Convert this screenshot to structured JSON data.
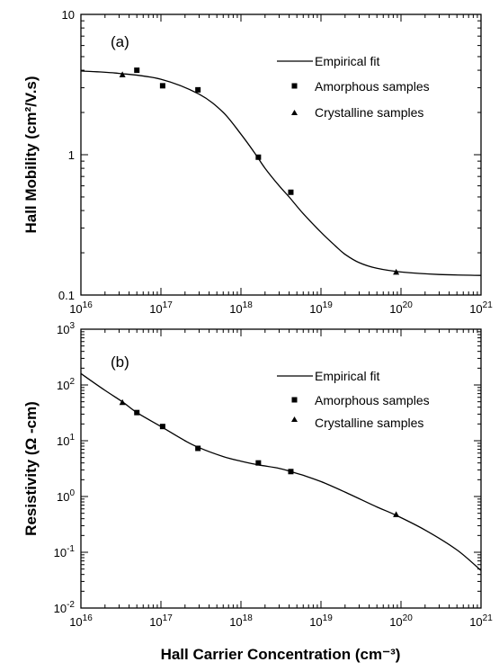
{
  "chart_data": [
    {
      "type": "line",
      "panel_label": "(a)",
      "xlabel": "",
      "ylabel": "Hall Mobility  (cm²/V.s)",
      "x_scale": "log",
      "y_scale": "log",
      "xlim": [
        1e+16,
        1e+21
      ],
      "ylim": [
        0.1,
        10
      ],
      "x_ticks": [
        {
          "value": 1e+16,
          "base": "10",
          "exp": "16"
        },
        {
          "value": 1e+17,
          "base": "10",
          "exp": "17"
        },
        {
          "value": 1e+18,
          "base": "10",
          "exp": "18"
        },
        {
          "value": 1e+19,
          "base": "10",
          "exp": "19"
        },
        {
          "value": 1e+20,
          "base": "10",
          "exp": "20"
        },
        {
          "value": 1e+21,
          "base": "10",
          "exp": "21"
        }
      ],
      "y_ticks": [
        {
          "value": 0.1,
          "label": "0.1"
        },
        {
          "value": 1,
          "label": "1"
        },
        {
          "value": 10,
          "label": "10"
        }
      ],
      "legend": {
        "placement": "top-right",
        "entries": [
          "Empirical  fit",
          "Amorphous samples",
          "Crystalline samples"
        ]
      },
      "series": [
        {
          "name": "Empirical  fit",
          "kind": "line",
          "x": [
            1e+16,
            3e+16,
            1e+17,
            3e+17,
            6e+17,
            1e+18,
            1.5e+18,
            2e+18,
            3e+18,
            4e+18,
            6e+18,
            1e+19,
            1.5e+19,
            2e+19,
            3e+19,
            5e+19,
            1e+20,
            3e+20,
            1e+21
          ],
          "y": [
            3.95,
            3.8,
            3.45,
            2.7,
            2.0,
            1.4,
            1.02,
            0.8,
            0.6,
            0.5,
            0.38,
            0.28,
            0.225,
            0.195,
            0.17,
            0.155,
            0.146,
            0.14,
            0.138
          ]
        },
        {
          "name": "Amorphous samples",
          "kind": "square",
          "x": [
            5e+16,
            1.05e+17,
            2.9e+17,
            1.65e+18,
            4.2e+18
          ],
          "y": [
            4.0,
            3.1,
            2.9,
            0.96,
            0.54
          ]
        },
        {
          "name": "Crystalline samples",
          "kind": "triangle",
          "x": [
            3.3e+16,
            8.7e+19
          ],
          "y": [
            3.7,
            0.145
          ]
        }
      ]
    },
    {
      "type": "line",
      "panel_label": "(b)",
      "xlabel": "Hall Carrier  Concentration  (cm⁻³)",
      "ylabel": "Resistivity  (Ω -cm)",
      "x_scale": "log",
      "y_scale": "log",
      "xlim": [
        1e+16,
        1e+21
      ],
      "ylim": [
        0.01,
        1000
      ],
      "x_ticks": [
        {
          "value": 1e+16,
          "base": "10",
          "exp": "16"
        },
        {
          "value": 1e+17,
          "base": "10",
          "exp": "17"
        },
        {
          "value": 1e+18,
          "base": "10",
          "exp": "18"
        },
        {
          "value": 1e+19,
          "base": "10",
          "exp": "19"
        },
        {
          "value": 1e+20,
          "base": "10",
          "exp": "20"
        },
        {
          "value": 1e+21,
          "base": "10",
          "exp": "21"
        }
      ],
      "y_ticks": [
        {
          "value": 0.01,
          "base": "10",
          "exp": "-2"
        },
        {
          "value": 0.1,
          "base": "10",
          "exp": "-1"
        },
        {
          "value": 1,
          "base": "10",
          "exp": "0"
        },
        {
          "value": 10,
          "base": "10",
          "exp": "1"
        },
        {
          "value": 100,
          "base": "10",
          "exp": "2"
        },
        {
          "value": 1000,
          "base": "10",
          "exp": "3"
        }
      ],
      "legend": {
        "placement": "top-right",
        "entries": [
          "Empirical  fit",
          "Amorphous samples",
          "Crystalline samples"
        ]
      },
      "series": [
        {
          "name": "Empirical  fit",
          "kind": "line",
          "x": [
            1e+16,
            2e+16,
            3.3e+16,
            5e+16,
            1e+17,
            2e+17,
            3e+17,
            6e+17,
            1e+18,
            1.65e+18,
            3e+18,
            4.2e+18,
            6e+18,
            1e+19,
            2e+19,
            5e+19,
            8.7e+19,
            2e+20,
            5e+20,
            1e+21
          ],
          "y": [
            160,
            80,
            50,
            32,
            18,
            10,
            7.5,
            5.2,
            4.3,
            3.7,
            3.2,
            2.8,
            2.4,
            1.85,
            1.2,
            0.65,
            0.46,
            0.25,
            0.11,
            0.047
          ]
        },
        {
          "name": "Amorphous samples",
          "kind": "square",
          "x": [
            5e+16,
            1.05e+17,
            2.9e+17,
            1.65e+18,
            4.2e+18
          ],
          "y": [
            32,
            18,
            7.3,
            4.0,
            2.8
          ]
        },
        {
          "name": "Crystalline samples",
          "kind": "triangle",
          "x": [
            3.3e+16,
            8.7e+19
          ],
          "y": [
            48,
            0.47
          ]
        }
      ]
    }
  ]
}
